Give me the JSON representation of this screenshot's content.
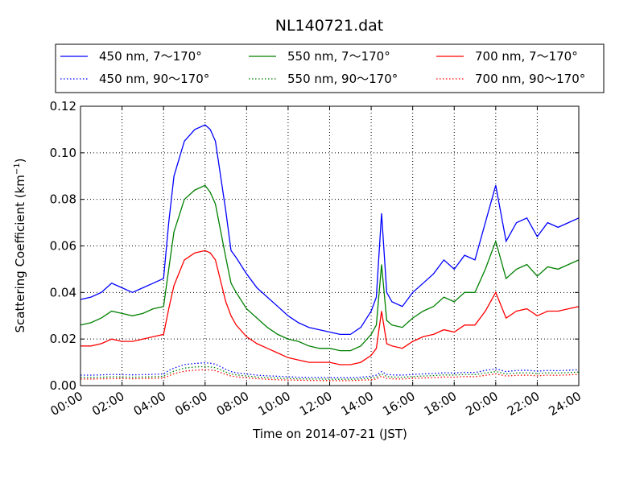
{
  "chart_data": {
    "type": "line",
    "title": "NL140721.dat",
    "xlabel": "Time on 2014-07-21 (JST)",
    "ylabel": "Scattering Coefficient (km",
    "ylabel_sup": "−1",
    "ylabel_end": ")",
    "xlim": [
      0,
      24
    ],
    "ylim": [
      0,
      0.12
    ],
    "x_ticks": [
      0,
      2,
      4,
      6,
      8,
      10,
      12,
      14,
      16,
      18,
      20,
      22,
      24
    ],
    "x_tick_labels": [
      "00:00",
      "02:00",
      "04:00",
      "06:00",
      "08:00",
      "10:00",
      "12:00",
      "14:00",
      "16:00",
      "18:00",
      "20:00",
      "22:00",
      "24:00"
    ],
    "y_ticks": [
      0,
      0.02,
      0.04,
      0.06,
      0.08,
      0.1,
      0.12
    ],
    "y_tick_labels": [
      "0.00",
      "0.02",
      "0.04",
      "0.06",
      "0.08",
      "0.10",
      "0.12"
    ],
    "grid": true,
    "legend_position": "top",
    "x": [
      0,
      0.5,
      1,
      1.5,
      2,
      2.5,
      3,
      3.5,
      4,
      4.25,
      4.5,
      5,
      5.5,
      6,
      6.25,
      6.5,
      7,
      7.25,
      7.5,
      8,
      8.5,
      9,
      9.5,
      10,
      10.5,
      11,
      11.5,
      12,
      12.5,
      13,
      13.5,
      14,
      14.25,
      14.5,
      14.75,
      15,
      15.5,
      16,
      16.5,
      17,
      17.5,
      18,
      18.5,
      19,
      19.5,
      20,
      20.5,
      21,
      21.5,
      22,
      22.5,
      23,
      23.5,
      24
    ],
    "series": [
      {
        "name": "450 nm, 7～170°",
        "color": "#0000ff",
        "style": "solid",
        "values": [
          0.037,
          0.038,
          0.04,
          0.044,
          0.042,
          0.04,
          0.042,
          0.044,
          0.046,
          0.07,
          0.09,
          0.105,
          0.11,
          0.112,
          0.11,
          0.105,
          0.075,
          0.058,
          0.055,
          0.048,
          0.042,
          0.038,
          0.034,
          0.03,
          0.027,
          0.025,
          0.024,
          0.023,
          0.022,
          0.022,
          0.025,
          0.032,
          0.038,
          0.074,
          0.04,
          0.036,
          0.034,
          0.04,
          0.044,
          0.048,
          0.054,
          0.05,
          0.056,
          0.054,
          0.07,
          0.086,
          0.062,
          0.07,
          0.072,
          0.064,
          0.07,
          0.068,
          0.07,
          0.072
        ]
      },
      {
        "name": "550 nm, 7～170°",
        "color": "#008000",
        "style": "solid",
        "values": [
          0.026,
          0.027,
          0.029,
          0.032,
          0.031,
          0.03,
          0.031,
          0.033,
          0.034,
          0.05,
          0.066,
          0.08,
          0.084,
          0.086,
          0.083,
          0.078,
          0.055,
          0.044,
          0.04,
          0.033,
          0.029,
          0.025,
          0.022,
          0.02,
          0.019,
          0.017,
          0.016,
          0.016,
          0.015,
          0.015,
          0.017,
          0.022,
          0.026,
          0.052,
          0.028,
          0.026,
          0.025,
          0.029,
          0.032,
          0.034,
          0.038,
          0.036,
          0.04,
          0.04,
          0.05,
          0.062,
          0.046,
          0.05,
          0.052,
          0.047,
          0.051,
          0.05,
          0.052,
          0.054
        ]
      },
      {
        "name": "700 nm, 7～170°",
        "color": "#ff0000",
        "style": "solid",
        "values": [
          0.017,
          0.017,
          0.018,
          0.02,
          0.019,
          0.019,
          0.02,
          0.021,
          0.022,
          0.033,
          0.043,
          0.054,
          0.057,
          0.058,
          0.057,
          0.054,
          0.036,
          0.03,
          0.026,
          0.021,
          0.018,
          0.016,
          0.014,
          0.012,
          0.011,
          0.01,
          0.01,
          0.01,
          0.009,
          0.009,
          0.01,
          0.013,
          0.016,
          0.032,
          0.018,
          0.017,
          0.016,
          0.019,
          0.021,
          0.022,
          0.024,
          0.023,
          0.026,
          0.026,
          0.032,
          0.04,
          0.029,
          0.032,
          0.033,
          0.03,
          0.032,
          0.032,
          0.033,
          0.034
        ]
      },
      {
        "name": "450 nm, 90～170°",
        "color": "#0000ff",
        "style": "dotted",
        "values": [
          0.0045,
          0.0045,
          0.0046,
          0.0048,
          0.0047,
          0.0046,
          0.0047,
          0.0048,
          0.005,
          0.0065,
          0.0075,
          0.009,
          0.0095,
          0.0098,
          0.0096,
          0.0092,
          0.007,
          0.006,
          0.0055,
          0.005,
          0.0045,
          0.0042,
          0.004,
          0.0038,
          0.0036,
          0.0035,
          0.0035,
          0.0034,
          0.0034,
          0.0034,
          0.0036,
          0.004,
          0.0045,
          0.006,
          0.0048,
          0.0046,
          0.0045,
          0.0048,
          0.005,
          0.0052,
          0.0055,
          0.0054,
          0.0057,
          0.0056,
          0.0065,
          0.0072,
          0.006,
          0.0065,
          0.0066,
          0.0062,
          0.0065,
          0.0064,
          0.0066,
          0.0068
        ]
      },
      {
        "name": "550 nm, 90～170°",
        "color": "#008000",
        "style": "dotted",
        "values": [
          0.0035,
          0.0035,
          0.0036,
          0.0038,
          0.0037,
          0.0036,
          0.0037,
          0.0038,
          0.004,
          0.0052,
          0.0062,
          0.0075,
          0.008,
          0.0082,
          0.008,
          0.0077,
          0.0058,
          0.005,
          0.0046,
          0.0041,
          0.0037,
          0.0034,
          0.0032,
          0.003,
          0.0029,
          0.0028,
          0.0028,
          0.0027,
          0.0027,
          0.0027,
          0.0029,
          0.0032,
          0.0036,
          0.005,
          0.0039,
          0.0037,
          0.0036,
          0.0039,
          0.0041,
          0.0043,
          0.0046,
          0.0045,
          0.0048,
          0.0047,
          0.0054,
          0.006,
          0.005,
          0.0054,
          0.0055,
          0.0052,
          0.0055,
          0.0054,
          0.0056,
          0.0058
        ]
      },
      {
        "name": "700 nm, 90～170°",
        "color": "#ff0000",
        "style": "dotted",
        "values": [
          0.0028,
          0.0028,
          0.0029,
          0.003,
          0.003,
          0.0029,
          0.003,
          0.0031,
          0.0032,
          0.0042,
          0.0051,
          0.0062,
          0.0066,
          0.0068,
          0.0067,
          0.0064,
          0.0048,
          0.0041,
          0.0038,
          0.0033,
          0.003,
          0.0027,
          0.0025,
          0.0024,
          0.0023,
          0.0022,
          0.0022,
          0.0021,
          0.0021,
          0.0021,
          0.0023,
          0.0025,
          0.0028,
          0.004,
          0.0031,
          0.0029,
          0.0028,
          0.0031,
          0.0033,
          0.0034,
          0.0037,
          0.0036,
          0.0039,
          0.0038,
          0.0044,
          0.005,
          0.0041,
          0.0044,
          0.0045,
          0.0042,
          0.0045,
          0.0044,
          0.0046,
          0.0048
        ]
      }
    ]
  }
}
